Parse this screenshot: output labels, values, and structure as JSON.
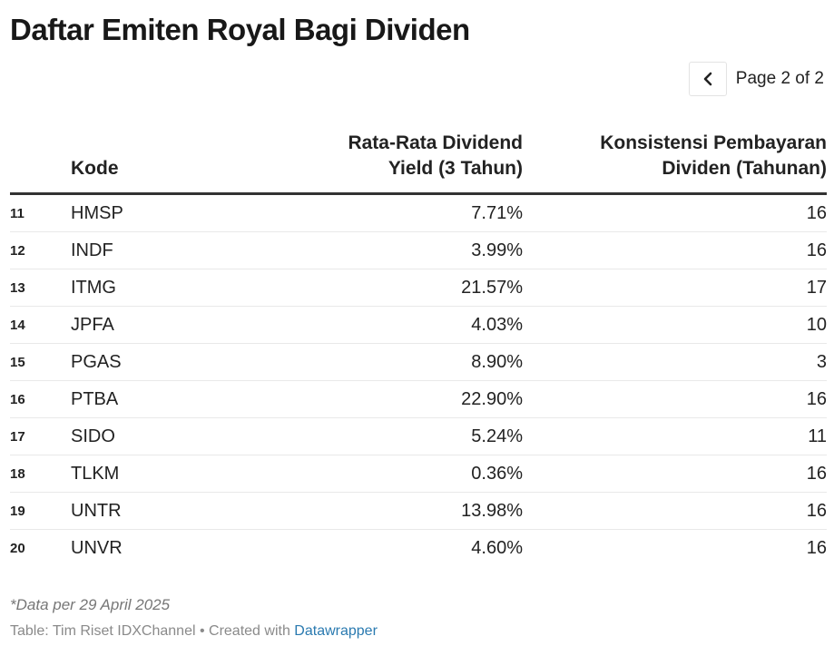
{
  "title": "Daftar Emiten Royal Bagi Dividen",
  "pager": {
    "prev_icon": "chevron-left-icon",
    "label": "Page 2 of 2"
  },
  "table": {
    "headers": {
      "kode": "Kode",
      "yield_line1": "Rata-Rata Dividend",
      "yield_line2": "Yield (3 Tahun)",
      "kons_line1": "Konsistensi Pembayaran",
      "kons_line2": "Dividen (Tahunan)"
    }
  },
  "chart_data": {
    "type": "table",
    "title": "Daftar Emiten Royal Bagi Dividen",
    "columns": [
      "",
      "Kode",
      "Rata-Rata Dividend Yield (3 Tahun)",
      "Konsistensi Pembayaran Dividen (Tahunan)"
    ],
    "rows": [
      {
        "rank": "11",
        "kode": "HMSP",
        "yield": "7.71%",
        "kons": "16"
      },
      {
        "rank": "12",
        "kode": "INDF",
        "yield": "3.99%",
        "kons": "16"
      },
      {
        "rank": "13",
        "kode": "ITMG",
        "yield": "21.57%",
        "kons": "17"
      },
      {
        "rank": "14",
        "kode": "JPFA",
        "yield": "4.03%",
        "kons": "10"
      },
      {
        "rank": "15",
        "kode": "PGAS",
        "yield": "8.90%",
        "kons": "3"
      },
      {
        "rank": "16",
        "kode": "PTBA",
        "yield": "22.90%",
        "kons": "16"
      },
      {
        "rank": "17",
        "kode": "SIDO",
        "yield": "5.24%",
        "kons": "11"
      },
      {
        "rank": "18",
        "kode": "TLKM",
        "yield": "0.36%",
        "kons": "16"
      },
      {
        "rank": "19",
        "kode": "UNTR",
        "yield": "13.98%",
        "kons": "16"
      },
      {
        "rank": "20",
        "kode": "UNVR",
        "yield": "4.60%",
        "kons": "16"
      }
    ]
  },
  "footer": {
    "note": "*Data per 29 April 2025",
    "source_prefix": "Table: Tim Riset IDXChannel • Created with ",
    "source_link": "Datawrapper"
  },
  "colors": {
    "link": "#2a7ab0",
    "header_rule": "#333333",
    "row_rule": "#e9e9e9"
  }
}
